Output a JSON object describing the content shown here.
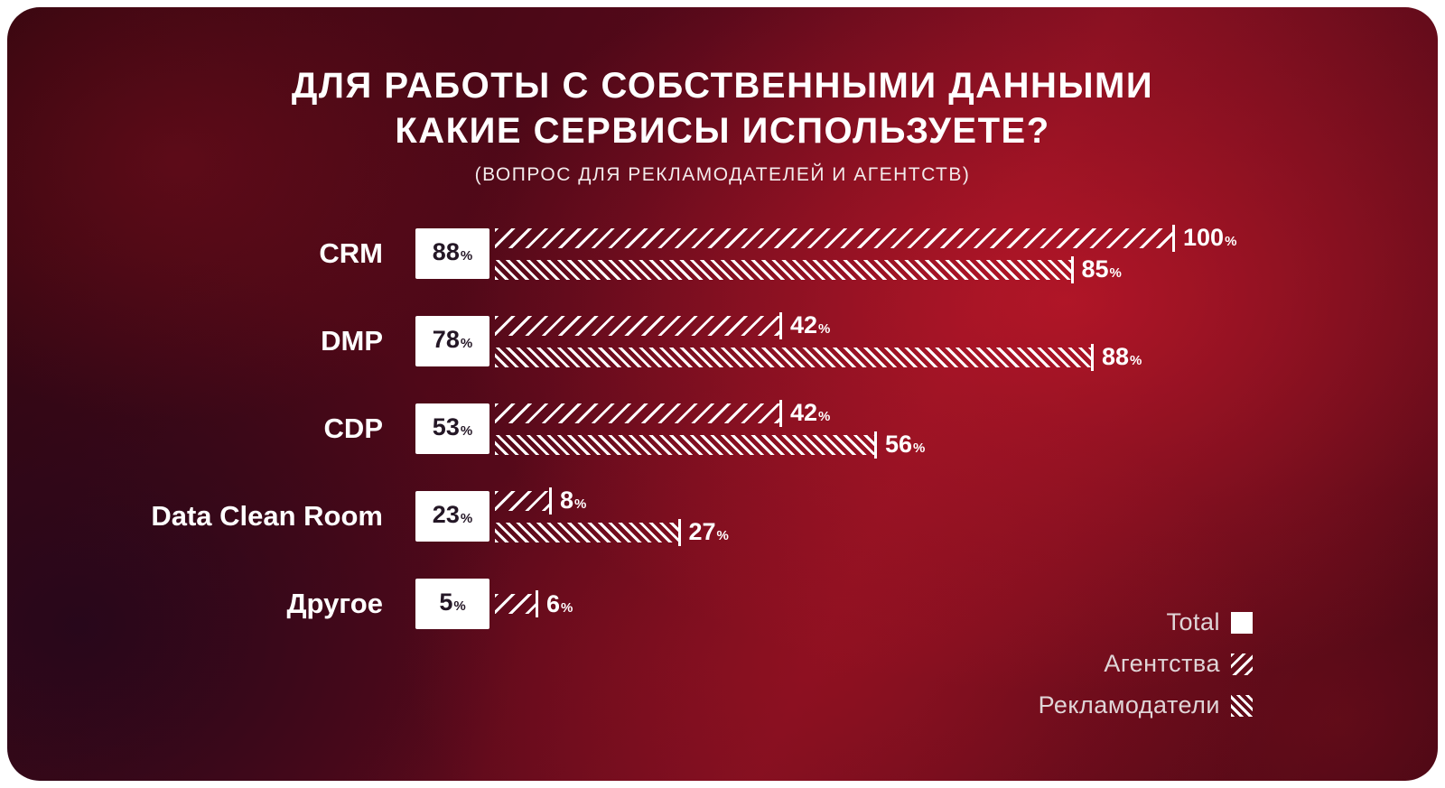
{
  "title": {
    "line1": "ДЛЯ РАБОТЫ С СОБСТВЕННЫМИ ДАННЫМИ",
    "line2": "КАКИЕ СЕРВИСЫ ИСПОЛЬЗУЕТЕ?",
    "subtitle": "(ВОПРОС ДЛЯ РЕКЛАМОДАТЕЛЕЙ И АГЕНТСТВ)"
  },
  "chart_data": {
    "type": "bar",
    "orientation": "horizontal",
    "categories": [
      "CRM",
      "DMP",
      "CDP",
      "Data Clean Room",
      "Другое"
    ],
    "series": [
      {
        "name": "Total",
        "key": "total",
        "values": [
          88,
          78,
          53,
          23,
          5
        ],
        "style": "solid-white-box"
      },
      {
        "name": "Агентства",
        "key": "agencies",
        "values": [
          100,
          42,
          42,
          8,
          6
        ],
        "style": "hatch-forward"
      },
      {
        "name": "Рекламодатели",
        "key": "advertisers",
        "values": [
          85,
          88,
          56,
          27,
          null
        ],
        "style": "hatch-back"
      }
    ],
    "value_suffix": "%",
    "xlim": [
      0,
      100
    ],
    "grid": false,
    "legend_position": "bottom-right"
  },
  "legend": {
    "items": [
      {
        "label": "Total",
        "swatch": "solid"
      },
      {
        "label": "Агентства",
        "swatch": "hatch-forward"
      },
      {
        "label": "Рекламодатели",
        "swatch": "hatch-back"
      }
    ]
  },
  "colors": {
    "hatch": "#ffffff",
    "total_box_bg": "#ffffff",
    "total_box_text": "#241726",
    "title_text": "#ffffff",
    "background_base": "#3f0713",
    "background_highlight": "#c4182a"
  }
}
